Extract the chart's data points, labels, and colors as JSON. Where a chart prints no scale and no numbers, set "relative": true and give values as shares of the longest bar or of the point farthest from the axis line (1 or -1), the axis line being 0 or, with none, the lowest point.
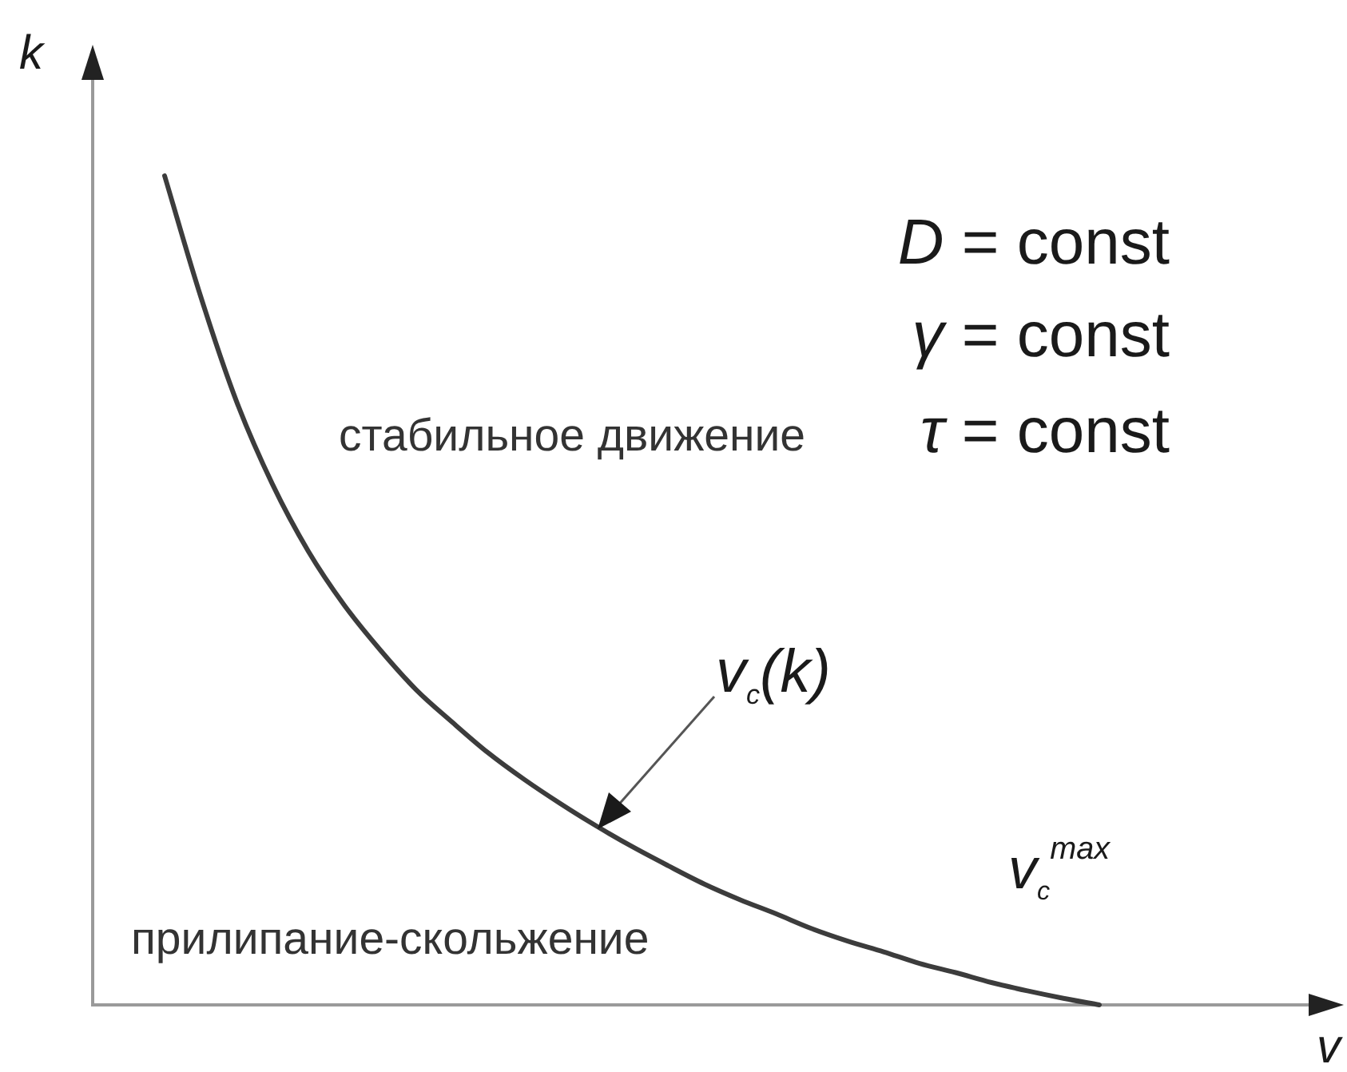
{
  "chart_data": {
    "type": "line",
    "relative": true,
    "xlabel": "v",
    "ylabel": "k",
    "categories": [
      null,
      null,
      null,
      null,
      null,
      null,
      null,
      null,
      null,
      null,
      null,
      null,
      null,
      null,
      null,
      null,
      null,
      null,
      null,
      null,
      null,
      null,
      null,
      null,
      null,
      null,
      null,
      null,
      null
    ],
    "series": [
      {
        "color": "#3c3c3c",
        "values": [
          null,
          null,
          1,
          0.855,
          0.728,
          0.628,
          0.547,
          0.482,
          0.428,
          0.38,
          0.341,
          0.304,
          0.272,
          0.243,
          0.216,
          0.191,
          0.168,
          0.146,
          0.127,
          0.11,
          0.092,
          0.077,
          0.064,
          0.05,
          0.039,
          0.027,
          0.017,
          0.008,
          0
        ]
      }
    ],
    "marker": "none",
    "legend": false,
    "annotations": [
      "D = const",
      "γ = const",
      "τ = const",
      "стабильное движение",
      "v$_{c}$(k)",
      "v$_{c}$$^{max}$",
      "прилипание-скольжение"
    ]
  }
}
